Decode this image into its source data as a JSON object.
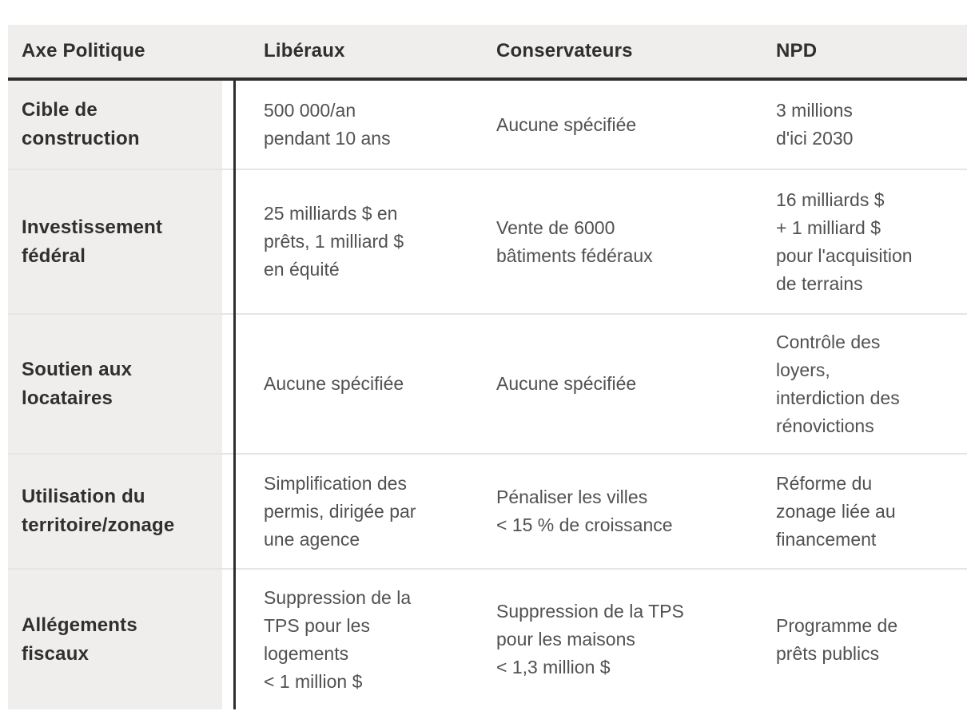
{
  "chart_data": {
    "type": "table",
    "columns": [
      "Axe Politique",
      "Libéraux",
      "Conservateurs",
      "NPD"
    ],
    "rows": [
      {
        "axis": "Cible de\nconstruction",
        "cells": [
          "500 000/an\npendant 10 ans",
          "Aucune spécifiée",
          "3 millions\nd'ici 2030"
        ]
      },
      {
        "axis": "Investissement\nfédéral",
        "cells": [
          "25 milliards $ en\nprêts, 1 milliard $\nen équité",
          "Vente de 6000\nbâtiments fédéraux",
          "16 milliards $\n+ 1 milliard $\npour l'acquisition\nde terrains"
        ]
      },
      {
        "axis": "Soutien aux\nlocataires",
        "cells": [
          "Aucune spécifiée",
          "Aucune spécifiée",
          "Contrôle des\nloyers,\ninterdiction des\nrénovictions"
        ]
      },
      {
        "axis": "Utilisation du\nterritoire/zonage",
        "cells": [
          "Simplification des\npermis, dirigée par\nune agence",
          "Pénaliser les villes\n< 15 % de croissance",
          "Réforme du\nzonage liée au\nfinancement"
        ]
      },
      {
        "axis": "Allégements\nfiscaux",
        "cells": [
          "Suppression de la\nTPS pour les\nlogements\n< 1 million $",
          "Suppression de la TPS\npour les maisons\n< 1,3 million $",
          "Programme de\nprêts publics"
        ]
      }
    ],
    "layout": {
      "legend": "none",
      "grid": "horizontal-dividers",
      "header_rule": "thick-bottom",
      "axis_column": "left-shaded"
    },
    "colors": {
      "header_background": "#efeeec",
      "axis_column_background": "#efeeec",
      "header_rule": "#2e2e2e",
      "vertical_rule": "#2e2e2e",
      "row_divider": "#e6e5e2",
      "heading_text": "#2f2f2f",
      "body_text": "#515151",
      "page_background": "#ffffff"
    }
  }
}
